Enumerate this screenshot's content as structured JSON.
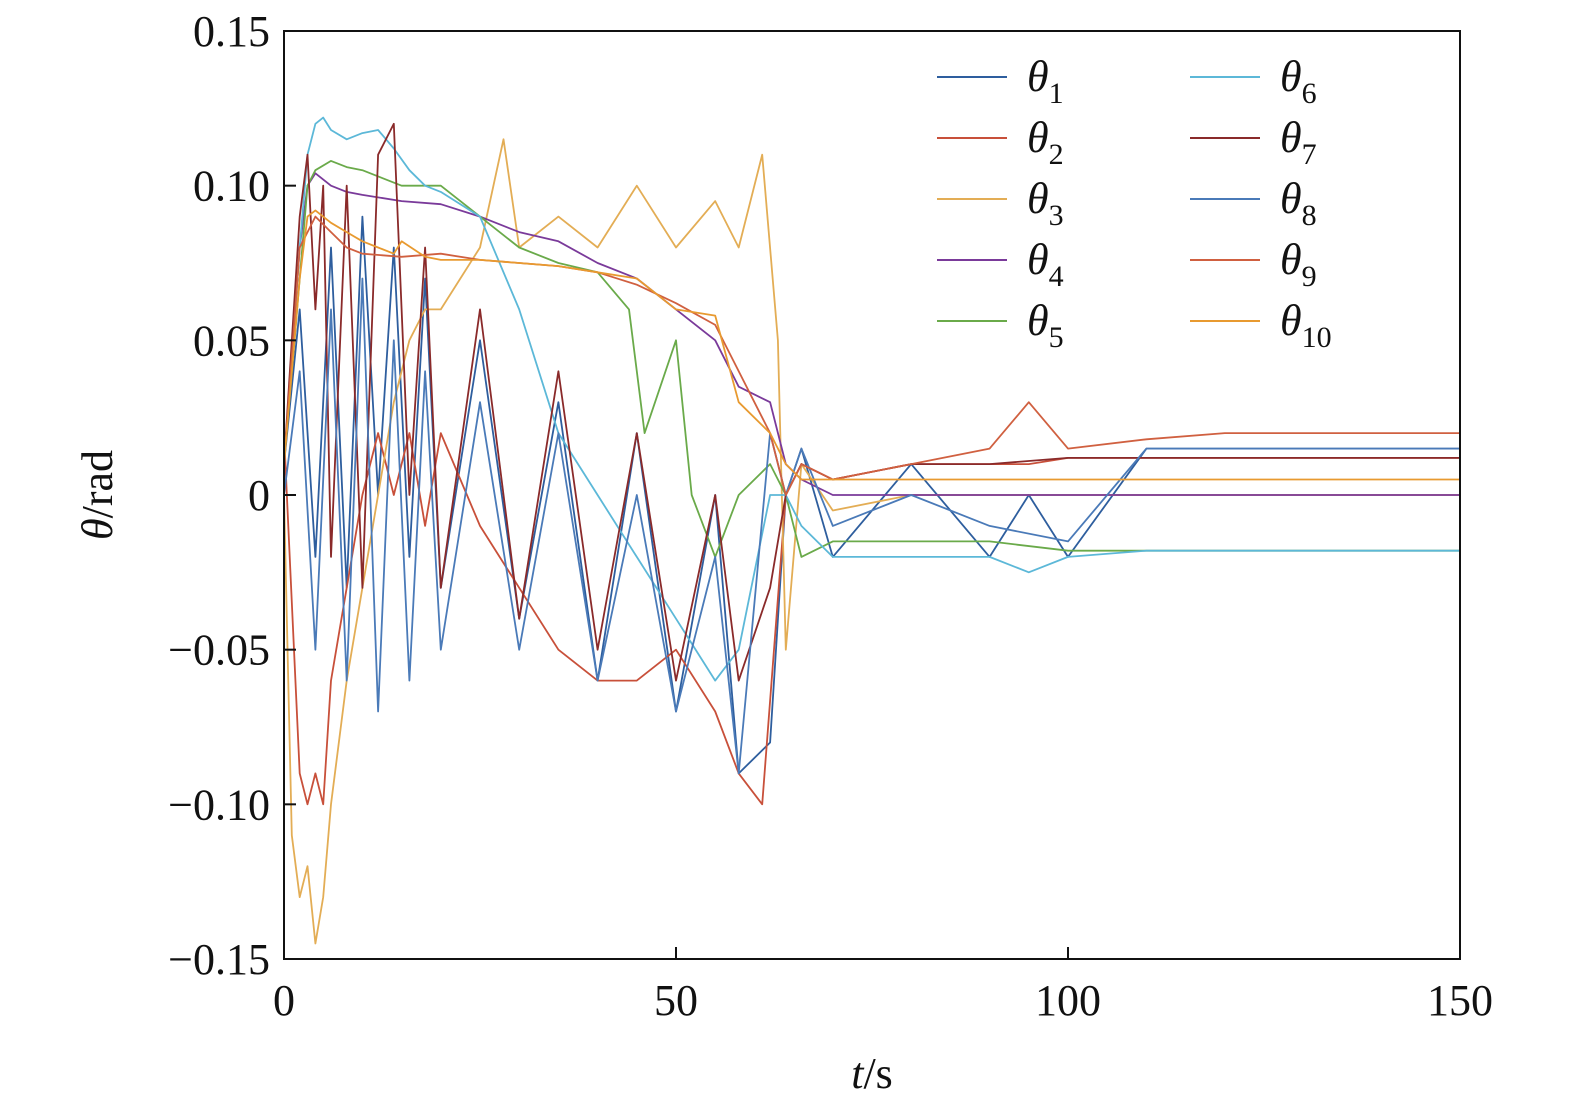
{
  "chart_data": {
    "type": "line",
    "xlabel_var": "t",
    "xlabel_unit": "/s",
    "ylabel_var": "θ",
    "ylabel_unit": "/rad",
    "xlim": [
      0,
      150
    ],
    "ylim": [
      -0.15,
      0.15
    ],
    "x_ticks": [
      0,
      50,
      100,
      150
    ],
    "x_tick_labels": [
      "0",
      "50",
      "100",
      "150"
    ],
    "y_ticks": [
      -0.15,
      -0.1,
      -0.05,
      0,
      0.05,
      0.1,
      0.15
    ],
    "y_tick_labels": [
      "−0.15",
      "−0.10",
      "−0.05",
      "0",
      "0.05",
      "0.10",
      "0.15"
    ],
    "grid": false,
    "legend_position": "top-right",
    "legend_columns": 2,
    "series": [
      {
        "name": "θ1",
        "sub": "1",
        "color": "#2e5e9e",
        "x": [
          0,
          2,
          4,
          6,
          8,
          10,
          12,
          14,
          16,
          18,
          20,
          25,
          30,
          35,
          40,
          45,
          50,
          55,
          58,
          62,
          64,
          66,
          70,
          80,
          90,
          95,
          100,
          110,
          120,
          130,
          140,
          150
        ],
        "y": [
          0.01,
          0.06,
          -0.02,
          0.08,
          -0.03,
          0.09,
          0.0,
          0.08,
          -0.02,
          0.07,
          -0.03,
          0.05,
          -0.04,
          0.03,
          -0.06,
          0.02,
          -0.07,
          0.0,
          -0.09,
          -0.08,
          0.0,
          0.015,
          -0.02,
          0.01,
          -0.02,
          0.0,
          -0.02,
          0.015,
          0.015,
          0.015,
          0.015,
          0.015
        ]
      },
      {
        "name": "θ2",
        "sub": "2",
        "color": "#c8503a",
        "x": [
          0,
          2,
          3,
          4,
          5,
          6,
          8,
          10,
          12,
          14,
          16,
          18,
          20,
          25,
          30,
          35,
          40,
          45,
          50,
          55,
          58,
          61,
          64,
          66,
          70,
          80,
          90,
          95,
          100,
          110,
          120,
          130,
          140,
          150
        ],
        "y": [
          0.02,
          -0.09,
          -0.1,
          -0.09,
          -0.1,
          -0.06,
          -0.03,
          0.0,
          0.02,
          0.0,
          0.02,
          -0.01,
          0.02,
          -0.01,
          -0.03,
          -0.05,
          -0.06,
          -0.06,
          -0.05,
          -0.07,
          -0.09,
          -0.1,
          0.0,
          0.01,
          0.005,
          0.01,
          0.01,
          0.01,
          0.012,
          0.012,
          0.012,
          0.012,
          0.012,
          0.012
        ]
      },
      {
        "name": "θ3",
        "sub": "3",
        "color": "#e3ad55",
        "x": [
          0,
          1,
          2,
          3,
          4,
          5,
          6,
          8,
          10,
          12,
          14,
          16,
          18,
          20,
          25,
          28,
          30,
          35,
          40,
          45,
          50,
          55,
          58,
          61,
          63,
          64,
          66,
          70,
          80,
          90,
          100,
          110,
          120,
          130,
          140,
          150
        ],
        "y": [
          0.0,
          -0.11,
          -0.13,
          -0.12,
          -0.145,
          -0.13,
          -0.1,
          -0.06,
          -0.03,
          0.0,
          0.03,
          0.05,
          0.06,
          0.06,
          0.08,
          0.115,
          0.08,
          0.09,
          0.08,
          0.1,
          0.08,
          0.095,
          0.08,
          0.11,
          0.05,
          -0.05,
          0.01,
          -0.005,
          0.0,
          0.0,
          0.0,
          0.0,
          0.0,
          0.0,
          0.0,
          0.0
        ]
      },
      {
        "name": "θ4",
        "sub": "4",
        "color": "#7a3a9a",
        "x": [
          0,
          2,
          3,
          4,
          6,
          8,
          10,
          15,
          20,
          25,
          30,
          35,
          40,
          45,
          50,
          55,
          58,
          62,
          64,
          66,
          70,
          80,
          90,
          100,
          110,
          120,
          130,
          140,
          150
        ],
        "y": [
          0.01,
          0.08,
          0.1,
          0.104,
          0.1,
          0.098,
          0.097,
          0.095,
          0.094,
          0.09,
          0.085,
          0.082,
          0.075,
          0.07,
          0.06,
          0.05,
          0.035,
          0.03,
          0.01,
          0.005,
          0.0,
          0.0,
          0.0,
          0.0,
          0.0,
          0.0,
          0.0,
          0.0,
          0.0
        ]
      },
      {
        "name": "θ5",
        "sub": "5",
        "color": "#6aaa4a",
        "x": [
          0,
          2,
          3,
          4,
          6,
          8,
          10,
          15,
          20,
          25,
          30,
          35,
          40,
          44,
          46,
          50,
          52,
          55,
          58,
          62,
          64,
          66,
          70,
          80,
          90,
          100,
          110,
          120,
          130,
          140,
          150
        ],
        "y": [
          0.01,
          0.07,
          0.1,
          0.105,
          0.108,
          0.106,
          0.105,
          0.1,
          0.1,
          0.09,
          0.08,
          0.075,
          0.072,
          0.06,
          0.02,
          0.05,
          0.0,
          -0.02,
          0.0,
          0.01,
          0.0,
          -0.02,
          -0.015,
          -0.015,
          -0.015,
          -0.018,
          -0.018,
          -0.018,
          -0.018,
          -0.018,
          -0.018
        ]
      },
      {
        "name": "θ6",
        "sub": "6",
        "color": "#5cb8d8",
        "x": [
          0,
          2,
          3,
          4,
          5,
          6,
          8,
          10,
          12,
          14,
          16,
          18,
          20,
          25,
          30,
          35,
          40,
          45,
          50,
          55,
          58,
          62,
          64,
          66,
          70,
          80,
          90,
          95,
          100,
          110,
          120,
          130,
          140,
          150
        ],
        "y": [
          0.01,
          0.08,
          0.11,
          0.12,
          0.122,
          0.118,
          0.115,
          0.117,
          0.118,
          0.112,
          0.105,
          0.1,
          0.098,
          0.09,
          0.06,
          0.02,
          0.0,
          -0.02,
          -0.04,
          -0.06,
          -0.05,
          0.0,
          0.0,
          -0.01,
          -0.02,
          -0.02,
          -0.02,
          -0.025,
          -0.02,
          -0.018,
          -0.018,
          -0.018,
          -0.018,
          -0.018
        ]
      },
      {
        "name": "θ7",
        "sub": "7",
        "color": "#8a2a2a",
        "x": [
          0,
          2,
          3,
          4,
          5,
          6,
          8,
          10,
          12,
          14,
          16,
          18,
          20,
          25,
          30,
          35,
          40,
          45,
          50,
          55,
          58,
          62,
          64,
          66,
          70,
          80,
          90,
          100,
          110,
          120,
          130,
          140,
          150
        ],
        "y": [
          0.01,
          0.09,
          0.11,
          0.06,
          0.1,
          -0.02,
          0.1,
          -0.03,
          0.11,
          0.12,
          0.0,
          0.08,
          -0.03,
          0.06,
          -0.04,
          0.04,
          -0.05,
          0.02,
          -0.06,
          0.0,
          -0.06,
          -0.03,
          0.0,
          0.01,
          0.005,
          0.01,
          0.01,
          0.012,
          0.012,
          0.012,
          0.012,
          0.012,
          0.012
        ]
      },
      {
        "name": "θ8",
        "sub": "8",
        "color": "#4a7ab8",
        "x": [
          0,
          2,
          4,
          6,
          8,
          10,
          12,
          14,
          16,
          18,
          20,
          25,
          30,
          35,
          40,
          45,
          50,
          55,
          58,
          62,
          64,
          66,
          70,
          80,
          90,
          100,
          110,
          120,
          130,
          140,
          150
        ],
        "y": [
          0.0,
          0.04,
          -0.05,
          0.06,
          -0.06,
          0.07,
          -0.07,
          0.05,
          -0.06,
          0.04,
          -0.05,
          0.03,
          -0.05,
          0.02,
          -0.06,
          0.0,
          -0.07,
          -0.02,
          -0.09,
          0.02,
          0.0,
          0.015,
          -0.01,
          0.0,
          -0.01,
          -0.015,
          0.015,
          0.015,
          0.015,
          0.015,
          0.015
        ]
      },
      {
        "name": "θ9",
        "sub": "9",
        "color": "#d06040",
        "x": [
          0,
          2,
          4,
          6,
          8,
          10,
          15,
          20,
          25,
          30,
          35,
          40,
          45,
          50,
          55,
          60,
          62,
          64,
          66,
          70,
          80,
          90,
          95,
          100,
          110,
          120,
          130,
          140,
          150
        ],
        "y": [
          0.01,
          0.08,
          0.09,
          0.085,
          0.08,
          0.078,
          0.077,
          0.078,
          0.076,
          0.075,
          0.074,
          0.072,
          0.068,
          0.062,
          0.055,
          0.03,
          0.02,
          0.0,
          0.01,
          0.005,
          0.01,
          0.015,
          0.03,
          0.015,
          0.018,
          0.02,
          0.02,
          0.02,
          0.02
        ]
      },
      {
        "name": "θ10",
        "sub": "10",
        "color": "#e89a30",
        "x": [
          0,
          2,
          3,
          4,
          6,
          8,
          10,
          12,
          14,
          15,
          18,
          20,
          25,
          30,
          35,
          40,
          45,
          50,
          55,
          58,
          62,
          64,
          66,
          70,
          80,
          90,
          100,
          110,
          120,
          130,
          140,
          150
        ],
        "y": [
          0.01,
          0.07,
          0.09,
          0.092,
          0.088,
          0.085,
          0.082,
          0.08,
          0.078,
          0.082,
          0.077,
          0.076,
          0.076,
          0.075,
          0.074,
          0.072,
          0.07,
          0.06,
          0.058,
          0.03,
          0.02,
          0.01,
          0.005,
          0.005,
          0.005,
          0.005,
          0.005,
          0.005,
          0.005,
          0.005,
          0.005,
          0.005
        ]
      }
    ]
  }
}
